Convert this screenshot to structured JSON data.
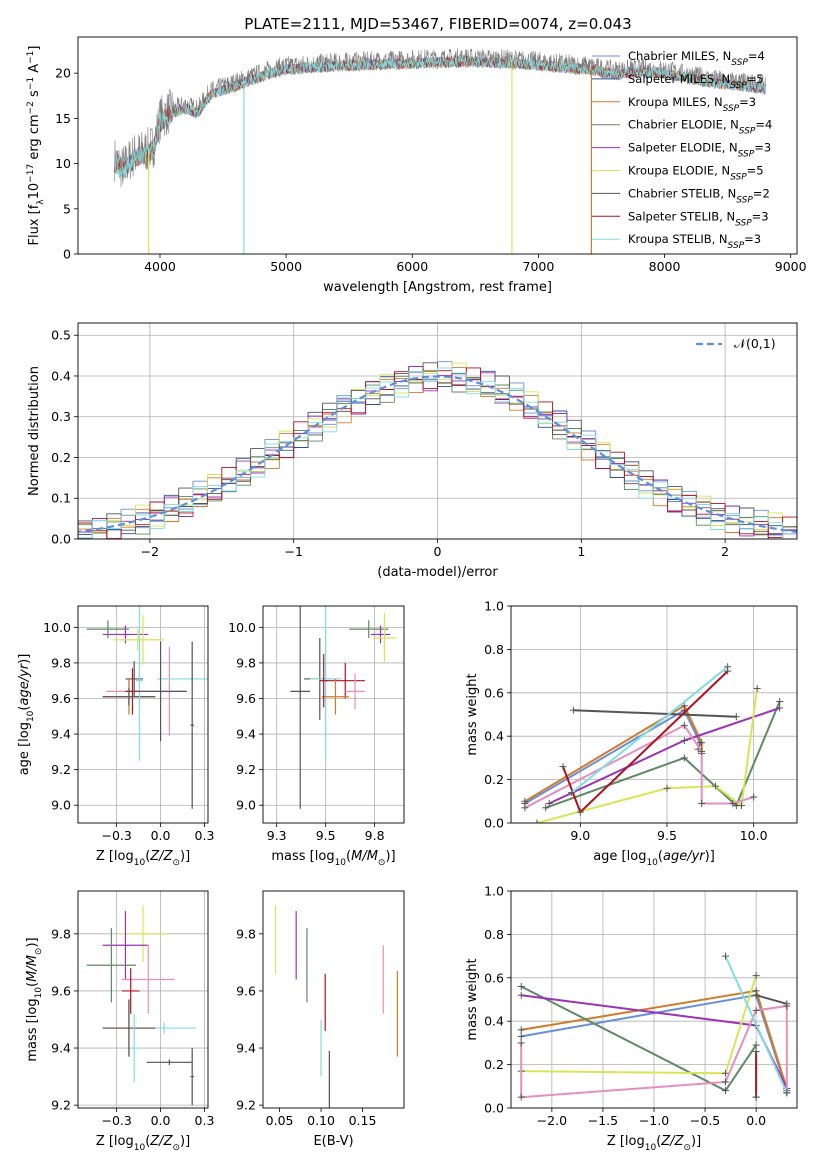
{
  "figure": {
    "title": "PLATE=2111, MJD=53467, FIBERID=0074, z=0.043"
  },
  "palette": {
    "Chabrier MILES": "#6a8fd6",
    "Salpeter MILES": "#2c4f91",
    "Kroupa MILES": "#d17a27",
    "Chabrier ELODIE": "#5e8a63",
    "Salpeter ELODIE": "#9b33b7",
    "Kroupa ELODIE": "#d8e655",
    "Chabrier STELIB": "#555555",
    "Salpeter STELIB": "#b0131f",
    "Kroupa STELIB": "#80dde3",
    "pink": "#e58fbf",
    "gray": "#7f7f7f",
    "normal_curve": "#5b8fe0"
  },
  "chart_data": [
    {
      "id": "spectrum",
      "type": "line",
      "xlabel": "wavelength [Angstrom, rest frame]",
      "ylabel": "Flux [f_λ10^-17 erg cm^-2 s^-1 A^-1]",
      "xlim": [
        3350,
        9050
      ],
      "ylim": [
        0,
        24
      ],
      "xticks": [
        4000,
        5000,
        6000,
        7000,
        8000,
        9000
      ],
      "yticks": [
        0,
        5,
        10,
        15,
        20
      ],
      "grid": false,
      "legend": "top-right",
      "data_envelope": {
        "x": [
          3640,
          3700,
          3800,
          3900,
          3950,
          4000,
          4100,
          4200,
          4300,
          4400,
          4500,
          4600,
          4700,
          4800,
          4900,
          5000,
          5200,
          5400,
          5600,
          5800,
          6000,
          6200,
          6400,
          6600,
          6800,
          7000,
          7200,
          7400,
          7600,
          7800,
          8000,
          8200,
          8400,
          8600,
          8800
        ],
        "y": [
          10.5,
          9.5,
          11.0,
          11.5,
          12.0,
          15.0,
          16.0,
          16.5,
          16.0,
          18.0,
          18.5,
          19.0,
          19.5,
          20.0,
          20.5,
          20.8,
          21.0,
          21.2,
          21.3,
          21.4,
          21.5,
          21.6,
          21.7,
          21.6,
          21.5,
          21.3,
          21.0,
          20.8,
          20.3,
          20.5,
          20.4,
          19.8,
          19.3,
          19.0,
          18.7
        ]
      },
      "series": [
        {
          "name": "Chabrier MILES",
          "nssp": "4"
        },
        {
          "name": "Salpeter MILES",
          "nssp": "5"
        },
        {
          "name": "Kroupa MILES",
          "nssp": "3"
        },
        {
          "name": "Chabrier ELODIE",
          "nssp": "4"
        },
        {
          "name": "Salpeter ELODIE",
          "nssp": "3"
        },
        {
          "name": "Kroupa ELODIE",
          "nssp": "5"
        },
        {
          "name": "Chabrier STELIB",
          "nssp": "2"
        },
        {
          "name": "Salpeter STELIB",
          "nssp": "3"
        },
        {
          "name": "Kroupa STELIB",
          "nssp": "3"
        }
      ],
      "drop_lines": [
        {
          "x": 3910,
          "series": "Kroupa ELODIE"
        },
        {
          "x": 4665,
          "series": "Kroupa STELIB"
        },
        {
          "x": 6790,
          "series": "Kroupa ELODIE"
        },
        {
          "x": 7420,
          "series": "Kroupa MILES"
        }
      ]
    },
    {
      "id": "residuals",
      "type": "line",
      "xlabel": "(data-model)/error",
      "ylabel": "Normed distribution",
      "xlim": [
        -2.5,
        2.5
      ],
      "ylim": [
        0,
        0.53
      ],
      "xticks": [
        -2,
        -1,
        0,
        1,
        2
      ],
      "yticks": [
        0.0,
        0.1,
        0.2,
        0.3,
        0.4,
        0.5
      ],
      "grid": true,
      "legend": "top-right",
      "legend_label": "𝒩(0,1)",
      "bin_width": 0.1,
      "series_names": [
        "Chabrier MILES",
        "Salpeter MILES",
        "Kroupa MILES",
        "Chabrier ELODIE",
        "Salpeter ELODIE",
        "Kroupa ELODIE",
        "Chabrier STELIB",
        "Salpeter STELIB",
        "Kroupa STELIB"
      ]
    },
    {
      "id": "age_vs_Z",
      "type": "scatter",
      "xlabel": "Z [log10(Z/Z⊙)]",
      "ylabel": "age  [log10(age/yr)]",
      "xlim": [
        -0.47,
        0.27
      ],
      "ylim": [
        8.9,
        10.12
      ],
      "xticks": [
        -0.25,
        0.0,
        0.25
      ],
      "yticks": [
        9.0,
        9.2,
        9.4,
        9.6,
        9.8,
        10.0
      ],
      "grid": true,
      "crosses": [
        {
          "s": "Chabrier ELODIE",
          "x": -0.3,
          "y": 9.99,
          "xerr": 0.12,
          "yerr": 0.05
        },
        {
          "s": "Salpeter ELODIE",
          "x": -0.2,
          "y": 9.96,
          "xerr": 0.13,
          "yerr": 0.05
        },
        {
          "s": "Kroupa ELODIE",
          "x": -0.1,
          "y": 9.93,
          "xerr": 0.12,
          "yerr": 0.14
        },
        {
          "s": "Kroupa ELODIE",
          "x": -0.13,
          "y": 9.93,
          "xerr": 0.14,
          "yerr": 0.06
        },
        {
          "s": "pink",
          "x": -0.18,
          "y": 9.64,
          "xerr": 0.13,
          "yerr": 0.07
        },
        {
          "s": "Chabrier STELIB",
          "x": -0.15,
          "y": 9.71,
          "xerr": 0.05,
          "yerr": 0.1
        },
        {
          "s": "Salpeter STELIB",
          "x": -0.16,
          "y": 9.64,
          "xerr": 0.04,
          "yerr": 0.13
        },
        {
          "s": "Kroupa MILES",
          "x": -0.18,
          "y": 9.61,
          "xerr": 0.15,
          "yerr": 0.1
        },
        {
          "s": "Chabrier STELIB",
          "x": -0.18,
          "y": 9.61,
          "xerr": 0.15,
          "yerr": 0.05
        },
        {
          "s": "pink",
          "x": 0.05,
          "y": 9.64,
          "xerr": 0.1,
          "yerr": 0.25
        },
        {
          "s": "Kroupa STELIB",
          "x": 0.18,
          "y": 9.71,
          "xerr": 0.2,
          "yerr": 0.02
        },
        {
          "s": "Kroupa STELIB",
          "x": -0.12,
          "y": 9.7,
          "xerr": 0.02,
          "yerr": 0.45
        },
        {
          "s": "Chabrier STELIB",
          "x": 0.0,
          "y": 9.64,
          "xerr": 0.15,
          "yerr": 0.28
        },
        {
          "s": "Chabrier STELIB",
          "x": 0.18,
          "y": 9.45,
          "xerr": 0.01,
          "yerr": 0.47
        }
      ]
    },
    {
      "id": "age_vs_mass",
      "type": "scatter",
      "xlabel": "mass [log10(M/M⊙)]",
      "ylabel": "",
      "xlim": [
        9.18,
        9.9
      ],
      "ylim": [
        8.9,
        10.12
      ],
      "xticks": [
        9.25,
        9.5,
        9.75
      ],
      "yticks": [
        9.0,
        9.2,
        9.4,
        9.6,
        9.8,
        10.0
      ],
      "grid": true,
      "crosses": [
        {
          "s": "Chabrier ELODIE",
          "x": 9.72,
          "y": 9.99,
          "xerr": 0.1,
          "yerr": 0.05
        },
        {
          "s": "Salpeter ELODIE",
          "x": 9.78,
          "y": 9.96,
          "xerr": 0.05,
          "yerr": 0.05
        },
        {
          "s": "Kroupa ELODIE",
          "x": 9.8,
          "y": 9.94,
          "xerr": 0.06,
          "yerr": 0.14
        },
        {
          "s": "Chabrier STELIB",
          "x": 9.47,
          "y": 9.71,
          "xerr": 0.08,
          "yerr": 0.23
        },
        {
          "s": "Salpeter STELIB",
          "x": 9.6,
          "y": 9.7,
          "xerr": 0.1,
          "yerr": 0.1
        },
        {
          "s": "pink",
          "x": 9.65,
          "y": 9.64,
          "xerr": 0.05,
          "yerr": 0.1
        },
        {
          "s": "Kroupa STELIB",
          "x": 9.5,
          "y": 9.71,
          "xerr": 0.08,
          "yerr": 0.46
        },
        {
          "s": "Kroupa MILES",
          "x": 9.55,
          "y": 9.61,
          "xerr": 0.07,
          "yerr": 0.1
        },
        {
          "s": "Chabrier STELIB",
          "x": 9.37,
          "y": 9.64,
          "xerr": 0.05,
          "yerr": 0.66
        },
        {
          "s": "Salpeter STELIB",
          "x": 9.49,
          "y": 9.7,
          "xerr": 0.02,
          "yerr": 0.15
        }
      ]
    },
    {
      "id": "massweight_vs_age",
      "type": "line",
      "xlabel": "age  [log10(age/yr)]",
      "ylabel": "mass weight",
      "xlim": [
        8.6,
        10.25
      ],
      "ylim": [
        0.0,
        1.0
      ],
      "xticks": [
        9.0,
        9.5,
        10.0
      ],
      "yticks": [
        0.0,
        0.2,
        0.4,
        0.6,
        0.8,
        1.0
      ],
      "grid": true,
      "series": [
        {
          "s": "Chabrier MILES",
          "x": [
            8.68,
            9.6,
            9.69,
            9.68
          ],
          "y": [
            0.09,
            0.52,
            0.37,
            0.34
          ]
        },
        {
          "s": "Kroupa MILES",
          "x": [
            8.68,
            9.6,
            9.7,
            9.7
          ],
          "y": [
            0.1,
            0.54,
            0.37,
            0.32
          ]
        },
        {
          "s": "Chabrier ELODIE",
          "x": [
            8.8,
            9.6,
            9.9,
            10.15
          ],
          "y": [
            0.07,
            0.3,
            0.08,
            0.56
          ]
        },
        {
          "s": "Salpeter ELODIE",
          "x": [
            8.82,
            9.6,
            10.15
          ],
          "y": [
            0.09,
            0.38,
            0.53
          ]
        },
        {
          "s": "Kroupa ELODIE",
          "x": [
            8.75,
            9.5,
            9.78,
            9.93,
            10.02
          ],
          "y": [
            0.0,
            0.16,
            0.17,
            0.08,
            0.62
          ]
        },
        {
          "s": "pink",
          "x": [
            8.68,
            9.6,
            9.7,
            9.7,
            9.88,
            10.0
          ],
          "y": [
            0.07,
            0.45,
            0.33,
            0.09,
            0.09,
            0.12
          ]
        },
        {
          "s": "Chabrier STELIB",
          "x": [
            8.96,
            9.9
          ],
          "y": [
            0.52,
            0.49
          ]
        },
        {
          "s": "Salpeter STELIB",
          "x": [
            8.9,
            9.0,
            9.85
          ],
          "y": [
            0.26,
            0.05,
            0.7
          ]
        },
        {
          "s": "Kroupa STELIB",
          "x": [
            8.95,
            9.85
          ],
          "y": [
            0.14,
            0.72
          ]
        }
      ]
    },
    {
      "id": "mass_vs_Z",
      "type": "scatter",
      "xlabel": "Z [log10(Z/Z⊙)]",
      "ylabel": "mass [log10(M/M⊙)]",
      "xlim": [
        -0.47,
        0.27
      ],
      "ylim": [
        9.19,
        9.95
      ],
      "xticks": [
        -0.25,
        0.0,
        0.25
      ],
      "yticks": [
        9.2,
        9.4,
        9.6,
        9.8
      ],
      "grid": true,
      "crosses": [
        {
          "s": "Kroupa ELODIE",
          "x": -0.1,
          "y": 9.8,
          "xerr": 0.14,
          "yerr": 0.1
        },
        {
          "s": "Salpeter ELODIE",
          "x": -0.2,
          "y": 9.76,
          "xerr": 0.13,
          "yerr": 0.12
        },
        {
          "s": "Chabrier ELODIE",
          "x": -0.28,
          "y": 9.69,
          "xerr": 0.14,
          "yerr": 0.13
        },
        {
          "s": "pink",
          "x": -0.07,
          "y": 9.64,
          "xerr": 0.15,
          "yerr": 0.12
        },
        {
          "s": "Salpeter STELIB",
          "x": -0.17,
          "y": 9.6,
          "xerr": 0.05,
          "yerr": 0.08
        },
        {
          "s": "Kroupa STELIB",
          "x": 0.02,
          "y": 9.47,
          "xerr": 0.18,
          "yerr": 0.02
        },
        {
          "s": "Kroupa MILES",
          "x": -0.18,
          "y": 9.47,
          "xerr": 0.15,
          "yerr": 0.1
        },
        {
          "s": "Chabrier STELIB",
          "x": -0.18,
          "y": 9.47,
          "xerr": 0.15,
          "yerr": 0.1
        },
        {
          "s": "Kroupa STELIB",
          "x": -0.15,
          "y": 9.4,
          "xerr": 0.02,
          "yerr": 0.12
        },
        {
          "s": "Chabrier STELIB",
          "x": 0.05,
          "y": 9.35,
          "xerr": 0.13,
          "yerr": 0.01
        },
        {
          "s": "Chabrier STELIB",
          "x": 0.18,
          "y": 9.3,
          "xerr": 0.01,
          "yerr": 0.1
        }
      ]
    },
    {
      "id": "mass_vs_ebv",
      "type": "scatter",
      "xlabel": "E(B-V)",
      "ylabel": "",
      "xlim": [
        0.03,
        0.2
      ],
      "ylim": [
        9.19,
        9.95
      ],
      "xticks": [
        0.05,
        0.1,
        0.15
      ],
      "yticks": [
        9.2,
        9.4,
        9.6,
        9.8
      ],
      "grid": false,
      "crosses": [
        {
          "s": "Kroupa ELODIE",
          "x": 0.045,
          "y": 9.78,
          "xerr": 0.0,
          "yerr": 0.12
        },
        {
          "s": "Salpeter ELODIE",
          "x": 0.07,
          "y": 9.76,
          "xerr": 0.0,
          "yerr": 0.12
        },
        {
          "s": "Chabrier ELODIE",
          "x": 0.083,
          "y": 9.69,
          "xerr": 0.0,
          "yerr": 0.13
        },
        {
          "s": "Salpeter STELIB",
          "x": 0.105,
          "y": 9.56,
          "xerr": 0.0,
          "yerr": 0.1
        },
        {
          "s": "Kroupa STELIB",
          "x": 0.1,
          "y": 9.4,
          "xerr": 0.0,
          "yerr": 0.1
        },
        {
          "s": "Chabrier STELIB",
          "x": 0.11,
          "y": 9.28,
          "xerr": 0.0,
          "yerr": 0.11
        },
        {
          "s": "pink",
          "x": 0.175,
          "y": 9.64,
          "xerr": 0.0,
          "yerr": 0.12
        },
        {
          "s": "Kroupa MILES",
          "x": 0.192,
          "y": 9.52,
          "xerr": 0.0,
          "yerr": 0.15
        }
      ]
    },
    {
      "id": "massweight_vs_Z",
      "type": "line",
      "xlabel": "Z [log10(Z/Z⊙)]",
      "ylabel": "mass weight",
      "xlim": [
        -2.4,
        0.4
      ],
      "ylim": [
        0.0,
        1.0
      ],
      "xticks": [
        -2.0,
        -1.5,
        -1.0,
        -0.5,
        0.0
      ],
      "yticks": [
        0.0,
        0.2,
        0.4,
        0.6,
        0.8,
        1.0
      ],
      "grid": true,
      "series": [
        {
          "s": "Chabrier MILES",
          "x": [
            -2.3,
            0.0,
            0.3
          ],
          "y": [
            0.33,
            0.52,
            0.08
          ]
        },
        {
          "s": "Kroupa MILES",
          "x": [
            -2.3,
            0.0,
            0.3
          ],
          "y": [
            0.36,
            0.54,
            0.09
          ]
        },
        {
          "s": "Chabrier ELODIE",
          "x": [
            -2.3,
            -0.3,
            0.0
          ],
          "y": [
            0.56,
            0.08,
            0.29
          ]
        },
        {
          "s": "Salpeter ELODIE",
          "x": [
            -2.3,
            0.0,
            0.3
          ],
          "y": [
            0.52,
            0.38,
            0.09
          ]
        },
        {
          "s": "Kroupa ELODIE",
          "x": [
            -2.3,
            -0.3,
            0.0
          ],
          "y": [
            0.17,
            0.16,
            0.61
          ]
        },
        {
          "s": "pink",
          "x": [
            -2.3,
            -2.3,
            -0.3,
            0.0,
            0.3,
            0.3
          ],
          "y": [
            0.3,
            0.05,
            0.12,
            0.45,
            0.47,
            0.07
          ]
        },
        {
          "s": "Chabrier STELIB",
          "x": [
            0.0,
            0.3
          ],
          "y": [
            0.52,
            0.48
          ]
        },
        {
          "s": "Salpeter STELIB",
          "x": [
            0.0,
            0.0,
            0.0
          ],
          "y": [
            0.05,
            0.26,
            0.05
          ]
        },
        {
          "s": "Kroupa STELIB",
          "x": [
            -0.3,
            0.3
          ],
          "y": [
            0.7,
            0.07
          ]
        }
      ]
    }
  ]
}
